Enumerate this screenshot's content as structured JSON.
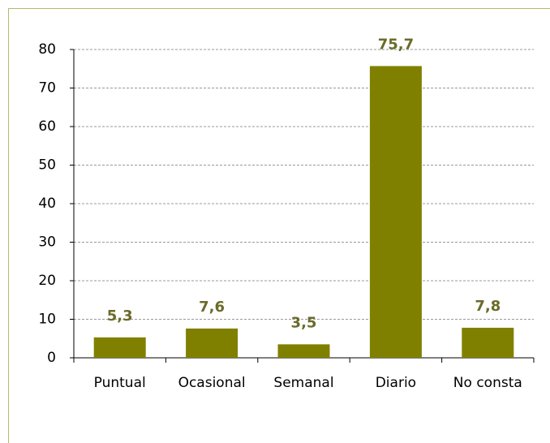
{
  "chart_data": {
    "type": "bar",
    "categories": [
      "Puntual",
      "Ocasional",
      "Semanal",
      "Diario",
      "No consta"
    ],
    "values": [
      5.3,
      7.6,
      3.5,
      75.7,
      7.8
    ],
    "value_labels": [
      "5,3",
      "7,6",
      "3,5",
      "75,7",
      "7,8"
    ],
    "color": "#808000",
    "ylim": [
      0,
      80
    ],
    "yticks": [
      0,
      10,
      20,
      30,
      40,
      50,
      60,
      70,
      80
    ],
    "grid": true
  }
}
